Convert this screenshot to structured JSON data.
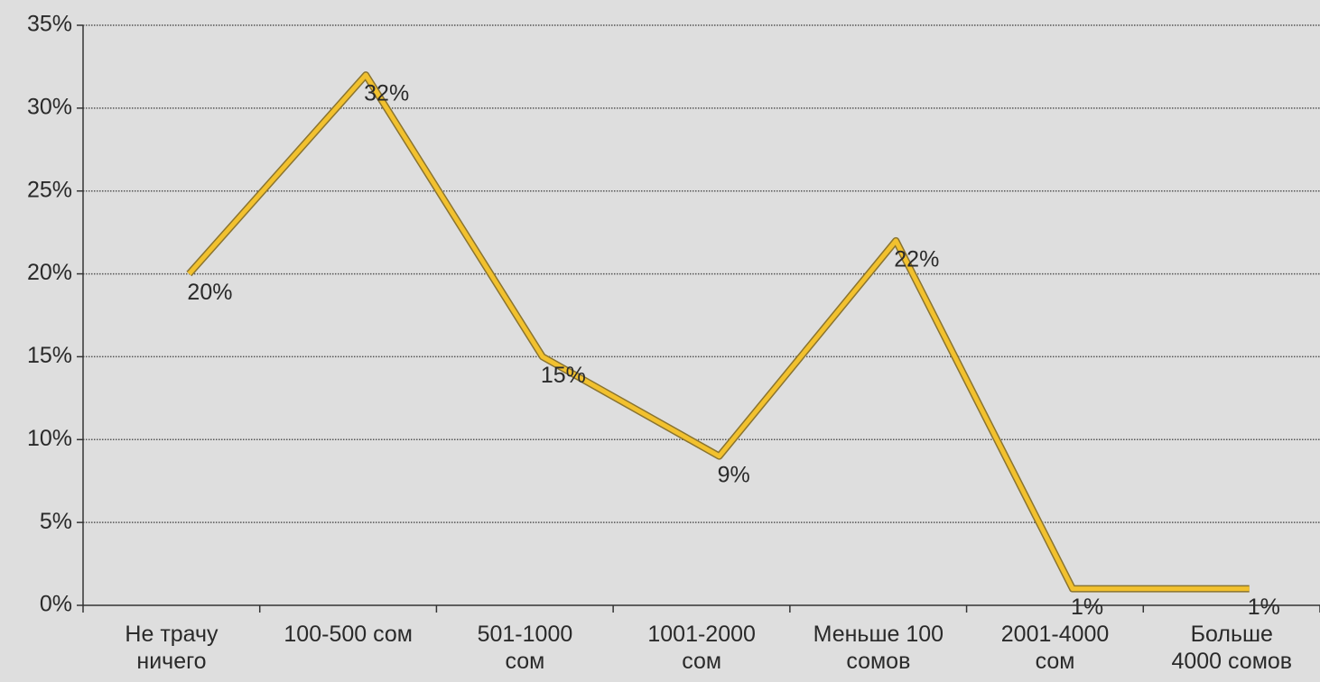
{
  "chart_data": {
    "type": "line",
    "categories": [
      "Не трачу\nничего",
      "100-500 сом",
      "501-1000\nсом",
      "1001-2000\nсом",
      "Меньше 100\nсомов",
      "2001-4000\nсом",
      "Больше\n4000 сомов"
    ],
    "series": [
      {
        "color": "#f2c12e",
        "values": [
          20,
          32,
          15,
          9,
          22,
          1,
          1
        ],
        "value_labels": [
          "20%",
          "32%",
          "15%",
          "9%",
          "22%",
          "1%",
          "1%"
        ]
      }
    ],
    "ylim": [
      0,
      35
    ],
    "yticks": [
      {
        "value": 0,
        "label": "0%"
      },
      {
        "value": 5,
        "label": "5%"
      },
      {
        "value": 10,
        "label": "10%"
      },
      {
        "value": 15,
        "label": "15%"
      },
      {
        "value": 20,
        "label": "20%"
      },
      {
        "value": 25,
        "label": "25%"
      },
      {
        "value": 30,
        "label": "30%"
      },
      {
        "value": 35,
        "label": "35%"
      }
    ],
    "grid": true
  }
}
